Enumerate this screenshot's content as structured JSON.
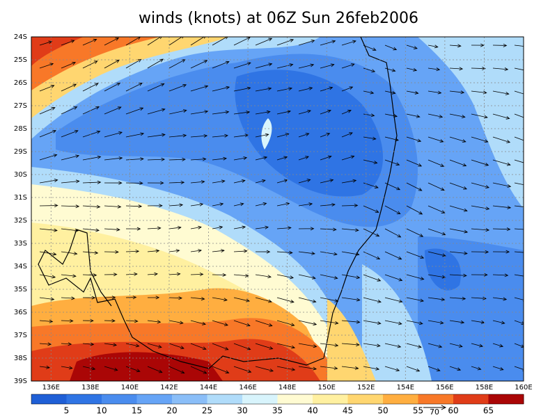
{
  "title": "winds (knots) at 06Z Sun 26feb2006",
  "map": {
    "lat_labels": [
      "24S",
      "25S",
      "26S",
      "27S",
      "28S",
      "29S",
      "30S",
      "31S",
      "32S",
      "33S",
      "34S",
      "35S",
      "36S",
      "37S",
      "38S",
      "39S"
    ],
    "lon_labels": [
      "136E",
      "138E",
      "140E",
      "142E",
      "144E",
      "146E",
      "148E",
      "150E",
      "152E",
      "154E",
      "156E",
      "158E",
      "160E"
    ]
  },
  "colorbar": {
    "levels": [
      5,
      10,
      15,
      20,
      25,
      30,
      35,
      40,
      45,
      50,
      55,
      60,
      65
    ],
    "colors": [
      "#1f5fd6",
      "#2f74e4",
      "#4a8cee",
      "#66a4f6",
      "#8abef8",
      "#b0dcfa",
      "#d8f4fc",
      "#fffbd2",
      "#fff0a0",
      "#ffd670",
      "#ffae40",
      "#f87828",
      "#e03c18",
      "#aa0606"
    ]
  },
  "vector_reference": "70"
}
